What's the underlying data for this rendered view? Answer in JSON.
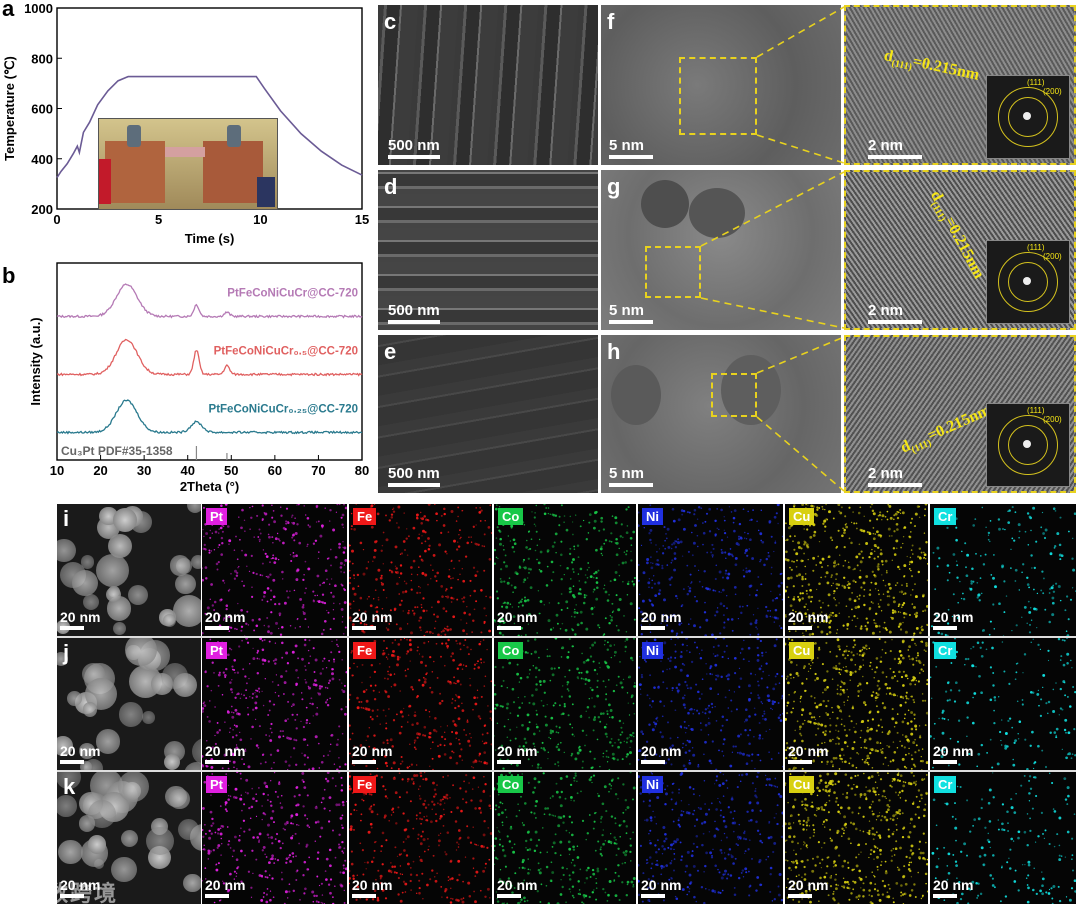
{
  "figure": {
    "watermark": "云数跨境",
    "panel_labels": {
      "a": "a",
      "b": "b",
      "c": "c",
      "d": "d",
      "e": "e",
      "f": "f",
      "g": "g",
      "h": "h",
      "i": "i",
      "j": "j",
      "k": "k"
    },
    "scale_bars": {
      "sem": "500 nm",
      "tem": "5 nm",
      "hrtem": "2 nm",
      "eds": "20 nm"
    },
    "d_spacing": {
      "d": "d",
      "sub": "(111)",
      "value": "=0.215nm"
    },
    "fft_labels": {
      "p111": "(111)",
      "p200": "(200)"
    },
    "elements": [
      {
        "symbol": "Pt",
        "color": "#e020e0"
      },
      {
        "symbol": "Fe",
        "color": "#f01818"
      },
      {
        "symbol": "Co",
        "color": "#18c848"
      },
      {
        "symbol": "Ni",
        "color": "#2030e0"
      },
      {
        "symbol": "Cu",
        "color": "#d8d010"
      },
      {
        "symbol": "Cr",
        "color": "#10e0e0"
      }
    ]
  },
  "chart_data": [
    {
      "type": "line",
      "panel": "a",
      "xlabel": "Time (s)",
      "ylabel": "Temperature (℃)",
      "xlim": [
        0,
        15
      ],
      "ylim": [
        200,
        1000
      ],
      "xticks": [
        0,
        5,
        10,
        15
      ],
      "yticks": [
        200,
        400,
        600,
        800,
        1000
      ],
      "series": [
        {
          "name": "temperature",
          "color": "#6b5b95",
          "x": [
            0,
            0.2,
            0.5,
            0.8,
            1.0,
            1.1,
            1.3,
            1.6,
            2.0,
            2.5,
            3.0,
            3.5,
            4.0,
            5.0,
            6.0,
            7.0,
            8.0,
            9.0,
            9.8,
            10.2,
            11.0,
            12.0,
            13.0,
            14.0,
            15.0
          ],
          "y": [
            325,
            350,
            380,
            420,
            450,
            425,
            505,
            545,
            615,
            670,
            710,
            727,
            727,
            727,
            727,
            727,
            727,
            727,
            727,
            680,
            590,
            500,
            430,
            375,
            335
          ]
        }
      ]
    },
    {
      "type": "line",
      "panel": "b",
      "xlabel": "2Theta (°)",
      "ylabel": "Intensity (a.u.)",
      "xlim": [
        10,
        80
      ],
      "xticks": [
        10,
        20,
        30,
        40,
        50,
        60,
        70,
        80
      ],
      "reference": {
        "label": "Cu₃Pt  PDF#35-1358",
        "peaks": [
          42,
          49
        ]
      },
      "series": [
        {
          "name": "PtFeCoNiCuCr@CC-720",
          "color": "#b57ab5",
          "offset": 2,
          "peaks": [
            {
              "x": 26,
              "h": 0.55,
              "w": 2.4
            },
            {
              "x": 42,
              "h": 0.2,
              "w": 0.6
            },
            {
              "x": 49,
              "h": 0.07,
              "w": 0.6
            }
          ]
        },
        {
          "name": "PtFeCoNiCuCr₀.₅@CC-720",
          "color": "#e06060",
          "offset": 1,
          "peaks": [
            {
              "x": 26,
              "h": 0.6,
              "w": 2.4
            },
            {
              "x": 42,
              "h": 0.42,
              "w": 0.6
            },
            {
              "x": 49,
              "h": 0.15,
              "w": 0.6
            }
          ]
        },
        {
          "name": "PtFeCoNiCuCr₀.₂₅@CC-720",
          "color": "#2a7a8e",
          "offset": 0,
          "peaks": [
            {
              "x": 26,
              "h": 0.55,
              "w": 2.4
            },
            {
              "x": 42,
              "h": 0.18,
              "w": 1.3
            }
          ]
        }
      ]
    }
  ]
}
